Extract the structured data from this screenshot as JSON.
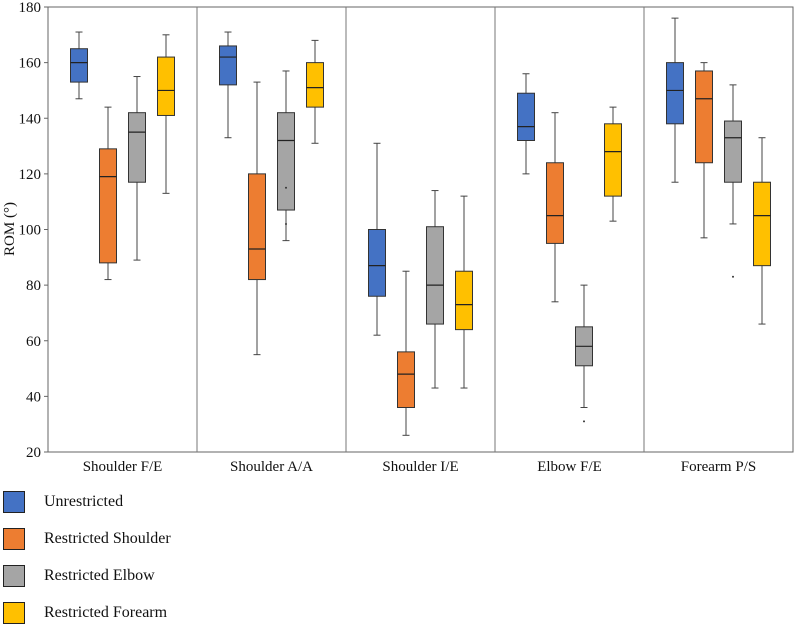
{
  "chart_data": {
    "type": "box",
    "title": "",
    "xlabel": "",
    "ylabel": "ROM (°)",
    "ylim": [
      20,
      180
    ],
    "yticks": [
      20,
      40,
      60,
      80,
      100,
      120,
      140,
      160,
      180
    ],
    "categories": [
      "Shoulder F/E",
      "Shoulder A/A",
      "Shoulder I/E",
      "Elbow F/E",
      "Forearm P/S"
    ],
    "series": [
      {
        "name": "Unrestricted",
        "color": "#4472C4",
        "boxes": [
          {
            "min": 147,
            "q1": 153,
            "median": 160,
            "q3": 165,
            "max": 171,
            "outliers": []
          },
          {
            "min": 133,
            "q1": 152,
            "median": 162,
            "q3": 166,
            "max": 171,
            "outliers": []
          },
          {
            "min": 62,
            "q1": 76,
            "median": 87,
            "q3": 100,
            "max": 131,
            "outliers": []
          },
          {
            "min": 120,
            "q1": 132,
            "median": 137,
            "q3": 149,
            "max": 156,
            "outliers": []
          },
          {
            "min": 117,
            "q1": 138,
            "median": 150,
            "q3": 160,
            "max": 176,
            "outliers": []
          }
        ]
      },
      {
        "name": "Restricted Shoulder",
        "color": "#ED7D31",
        "boxes": [
          {
            "min": 82,
            "q1": 88,
            "median": 119,
            "q3": 129,
            "max": 144,
            "outliers": []
          },
          {
            "min": 55,
            "q1": 82,
            "median": 93,
            "q3": 120,
            "max": 153,
            "outliers": []
          },
          {
            "min": 26,
            "q1": 36,
            "median": 48,
            "q3": 56,
            "max": 85,
            "outliers": []
          },
          {
            "min": 74,
            "q1": 95,
            "median": 105,
            "q3": 124,
            "max": 142,
            "outliers": []
          },
          {
            "min": 97,
            "q1": 124,
            "median": 147,
            "q3": 157,
            "max": 160,
            "outliers": []
          }
        ]
      },
      {
        "name": "Restricted Elbow",
        "color": "#A5A5A5",
        "boxes": [
          {
            "min": 89,
            "q1": 117,
            "median": 135,
            "q3": 142,
            "max": 155,
            "outliers": []
          },
          {
            "min": 96,
            "q1": 107,
            "median": 132,
            "q3": 142,
            "max": 157,
            "outliers": [
              115,
              102
            ]
          },
          {
            "min": 43,
            "q1": 66,
            "median": 80,
            "q3": 101,
            "max": 114,
            "outliers": []
          },
          {
            "min": 36,
            "q1": 51,
            "median": 58,
            "q3": 65,
            "max": 80,
            "outliers": [
              31
            ]
          },
          {
            "min": 102,
            "q1": 117,
            "median": 133,
            "q3": 139,
            "max": 152,
            "outliers": [
              83
            ]
          }
        ]
      },
      {
        "name": "Restricted Forearm",
        "color": "#FFC000",
        "boxes": [
          {
            "min": 113,
            "q1": 141,
            "median": 150,
            "q3": 162,
            "max": 170,
            "outliers": []
          },
          {
            "min": 131,
            "q1": 144,
            "median": 151,
            "q3": 160,
            "max": 168,
            "outliers": []
          },
          {
            "min": 43,
            "q1": 64,
            "median": 73,
            "q3": 85,
            "max": 112,
            "outliers": []
          },
          {
            "min": 103,
            "q1": 112,
            "median": 128,
            "q3": 138,
            "max": 144,
            "outliers": []
          },
          {
            "min": 66,
            "q1": 87,
            "median": 105,
            "q3": 117,
            "max": 133,
            "outliers": []
          }
        ]
      }
    ]
  }
}
